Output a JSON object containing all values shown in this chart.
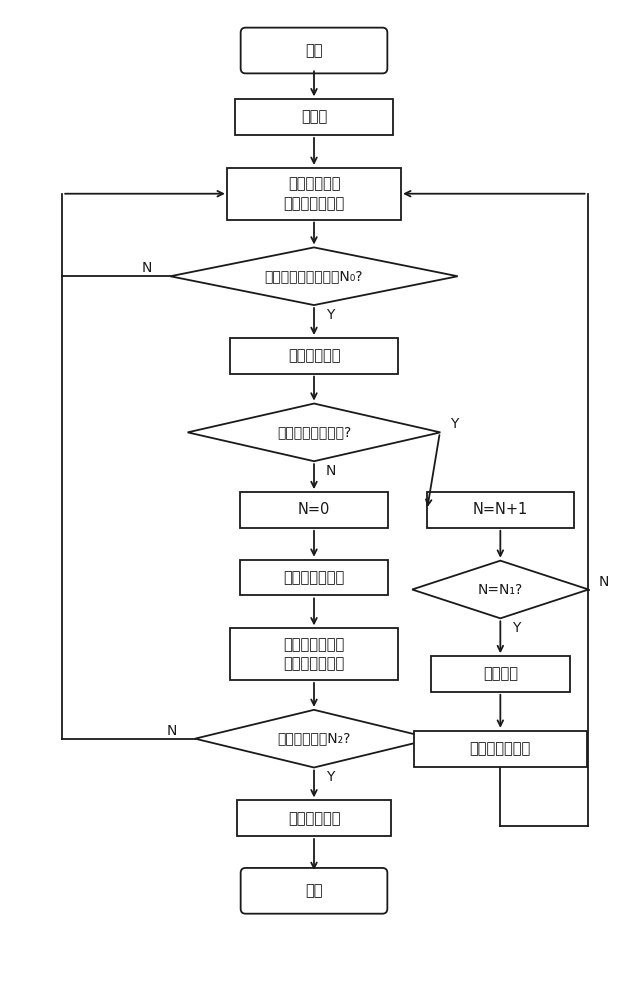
{
  "bg_color": "#ffffff",
  "line_color": "#1a1a1a",
  "text_color": "#1a1a1a",
  "font_size": 10.5,
  "start_label": "开始",
  "init_label": "初始化",
  "read_label": "读入相邻串经\n差分转换的信号",
  "d1_label": "任意相邻两串输出超N₀?",
  "fault_det_label": "故障电弧检测",
  "d2_label": "发生故障电弧事件?",
  "n0_label": "N=0",
  "adj_label": "相邻串出力不等",
  "cal_label": "校正平衡增益直\n至输出信号为零",
  "d3_label": "增益常数超出N₂?",
  "stop_label": "停止系统工作",
  "end_label": "结束",
  "nn1_label": "N=N+1",
  "dn1_label": "N=N₁?",
  "fa_label": "故障电弧",
  "cut_label": "切除故障光伏块",
  "y_label": "Y",
  "n_label": "N",
  "fig_w": 6.29,
  "fig_h": 10.0,
  "dpi": 100
}
